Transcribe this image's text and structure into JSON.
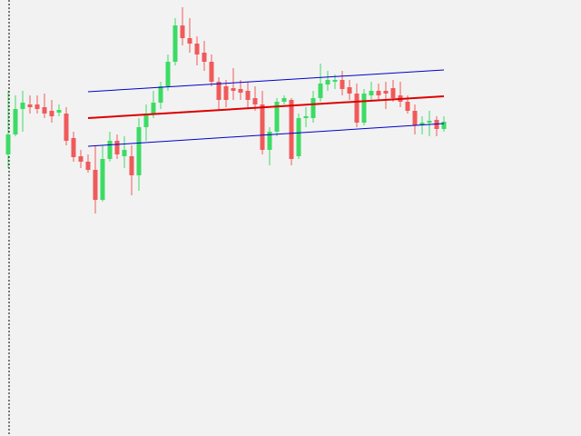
{
  "chart_data": {
    "type": "candlestick",
    "ylim": [
      0,
      480
    ],
    "up_color": "#3cdc64",
    "down_color": "#f05a5a",
    "open": [
      310,
      332,
      360,
      365,
      365,
      362,
      358,
      356,
      355,
      328,
      308,
      302,
      293,
      260,
      305,
      325,
      308,
      308,
      287,
      340,
      355,
      367,
      385,
      412,
      452,
      438,
      432,
      422,
      412,
      390,
      385,
      383,
      382,
      380,
      372,
      365,
      315,
      335,
      368,
      370,
      308,
      350,
      350,
      372,
      387,
      390,
      392,
      384,
      377,
      345,
      375,
      380,
      380,
      383,
      375,
      368,
      358,
      342,
      345,
      348,
      338
    ],
    "close": [
      332,
      360,
      367,
      362,
      360,
      355,
      352,
      359,
      325,
      307,
      302,
      293,
      260,
      305,
      325,
      310,
      315,
      287,
      340,
      355,
      367,
      385,
      412,
      452,
      438,
      432,
      420,
      412,
      390,
      370,
      370,
      380,
      378,
      370,
      365,
      315,
      335,
      368,
      372,
      305,
      350,
      352,
      372,
      388,
      392,
      392,
      382,
      377,
      345,
      377,
      380,
      375,
      377,
      372,
      368,
      358,
      342,
      345,
      347,
      338,
      346
    ],
    "high": [
      380,
      375,
      380,
      375,
      375,
      377,
      370,
      365,
      362,
      335,
      315,
      310,
      320,
      320,
      335,
      332,
      330,
      320,
      350,
      365,
      380,
      390,
      420,
      460,
      472,
      460,
      440,
      435,
      420,
      395,
      392,
      405,
      392,
      390,
      385,
      380,
      340,
      372,
      375,
      372,
      355,
      362,
      380,
      410,
      402,
      398,
      402,
      392,
      388,
      382,
      390,
      388,
      390,
      392,
      390,
      375,
      365,
      352,
      358,
      352,
      352
    ],
    "low": [
      295,
      330,
      335,
      355,
      355,
      350,
      345,
      352,
      320,
      302,
      295,
      290,
      245,
      258,
      302,
      305,
      295,
      265,
      270,
      325,
      350,
      360,
      380,
      408,
      430,
      422,
      408,
      402,
      385,
      358,
      362,
      370,
      370,
      360,
      358,
      310,
      298,
      330,
      365,
      298,
      305,
      340,
      345,
      368,
      380,
      382,
      375,
      370,
      340,
      342,
      368,
      370,
      360,
      368,
      362,
      355,
      332,
      332,
      330,
      330,
      335
    ],
    "lines": [
      {
        "color": "#0000cc",
        "x": [
          11,
          60
        ],
        "values": [
          379,
          403
        ]
      },
      {
        "color": "#dd0000",
        "x": [
          11,
          60
        ],
        "values": [
          350,
          374
        ]
      },
      {
        "color": "#0000cc",
        "x": [
          11,
          60
        ],
        "values": [
          319,
          344
        ]
      }
    ]
  }
}
